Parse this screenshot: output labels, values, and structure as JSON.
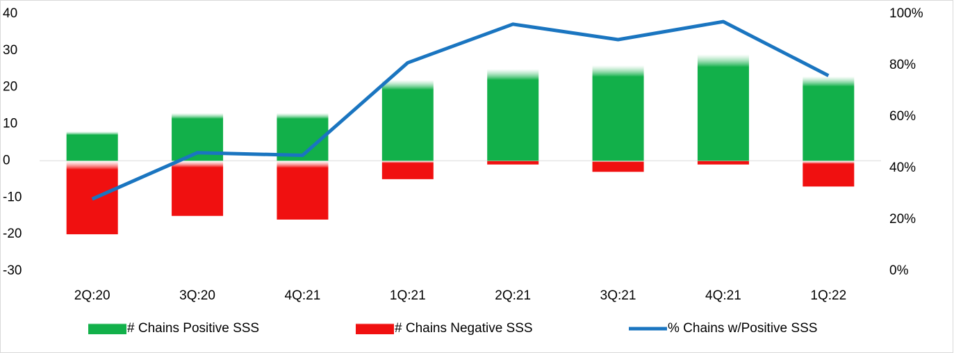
{
  "chart_data": {
    "type": "bar_line",
    "categories": [
      "2Q:20",
      "3Q:20",
      "4Q:21",
      "1Q:21",
      "2Q:21",
      "3Q:21",
      "4Q:21",
      "1Q:22"
    ],
    "series": [
      {
        "name": "# Chains Positive SSS",
        "color": "#12b04a",
        "values": [
          8,
          13,
          13,
          22,
          25,
          26,
          29,
          23
        ]
      },
      {
        "name": "# Chains Negative SSS",
        "color": "#f01010",
        "values": [
          -20,
          -15,
          -16,
          -5,
          -1,
          -3,
          -1,
          -7
        ]
      },
      {
        "name": "% Chains w/Positive SSS",
        "color": "#1a75c0",
        "axis": "y2",
        "values": [
          28,
          46,
          45,
          81,
          96,
          90,
          97,
          76
        ]
      }
    ],
    "ylim": [
      -30,
      40
    ],
    "yticks": [
      -30,
      -20,
      -10,
      0,
      10,
      20,
      30,
      40
    ],
    "y2lim": [
      0,
      100
    ],
    "y2ticks": [
      {
        "value": 0,
        "label": "0%"
      },
      {
        "value": 20,
        "label": "20%"
      },
      {
        "value": 40,
        "label": "40%"
      },
      {
        "value": 60,
        "label": "60%"
      },
      {
        "value": 80,
        "label": "80%"
      },
      {
        "value": 100,
        "label": "100%"
      }
    ],
    "legend": "bottom"
  }
}
